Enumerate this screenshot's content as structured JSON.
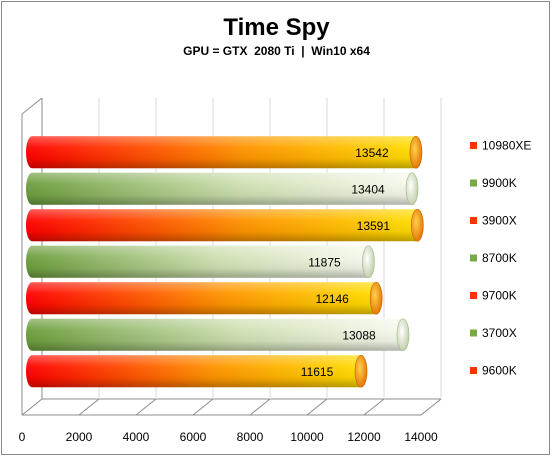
{
  "chart_data": {
    "type": "bar",
    "orientation": "horizontal",
    "title": "Time Spy",
    "subtitle": "GPU = GTX  2080 Ti  |  Win10 x64",
    "categories": [
      "10980XE",
      "9900K",
      "3900X",
      "8700K",
      "9700K",
      "3700X",
      "9600K"
    ],
    "values": [
      13542,
      13404,
      13591,
      11875,
      12146,
      13088,
      11615
    ],
    "data_labels": [
      "13542",
      "13404",
      "13591",
      "11875",
      "12146",
      "13088",
      "11615"
    ],
    "xlim": [
      0,
      14000
    ],
    "x_ticks": [
      "0",
      "2000",
      "4000",
      "6000",
      "8000",
      "10000",
      "12000",
      "14000"
    ],
    "grid": true,
    "legend_position": "right",
    "style": "3d-cylinder",
    "colors": {
      "intel_gradient": [
        "#ff0000",
        "#ff8800",
        "#ffdd00"
      ],
      "amd_gradient": [
        "#6fa040",
        "#c8dba8",
        "#f4f8ec"
      ],
      "legend_intel": "#ff3300",
      "legend_amd": "#77aa44"
    },
    "series_style": [
      "intel",
      "amd",
      "intel",
      "amd",
      "intel",
      "amd",
      "intel"
    ]
  }
}
